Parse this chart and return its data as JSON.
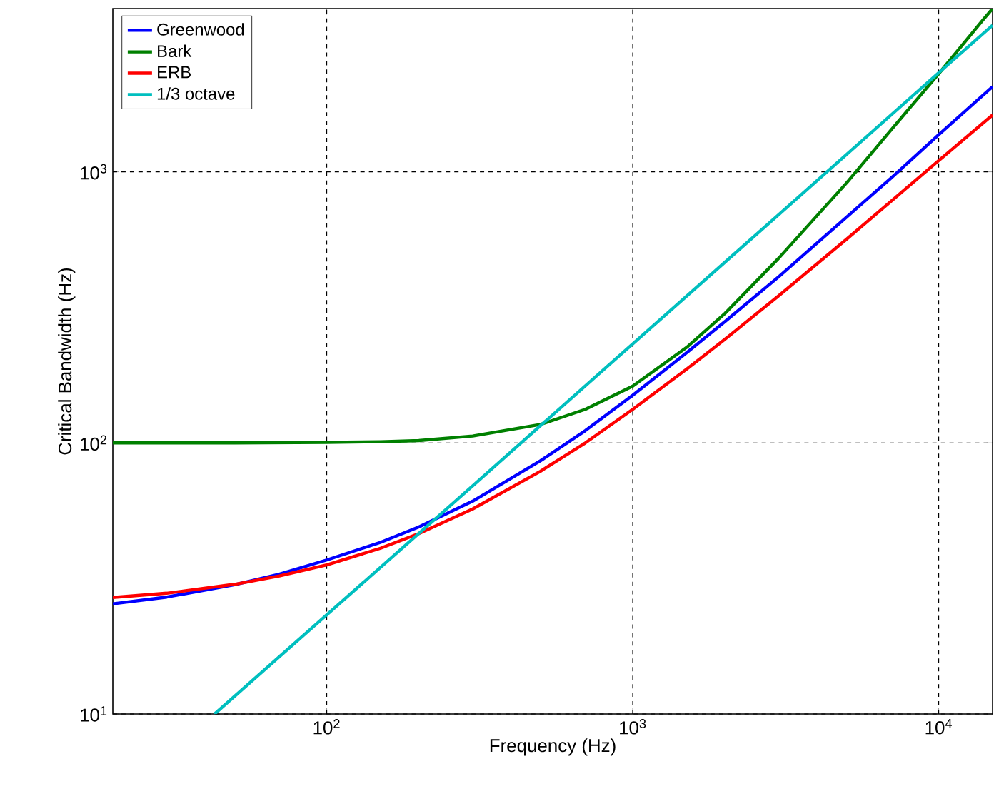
{
  "chart_data": {
    "type": "line",
    "xlabel": "Frequency (Hz)",
    "ylabel": "Critical Bandwidth (Hz)",
    "log": "xy",
    "grid": true,
    "legend": "top left",
    "marker": "none",
    "line_style": "solid",
    "xlim": [
      20,
      15000
    ],
    "ylim": [
      10,
      4000
    ],
    "xticks": [
      {
        "value": 100,
        "label": "10$^{2}$"
      },
      {
        "value": 1000,
        "label": "10$^{3}$"
      },
      {
        "value": 10000,
        "label": "10$^{4}$"
      }
    ],
    "yticks": [
      {
        "value": 10,
        "label": "10$^{1}$"
      },
      {
        "value": 100,
        "label": "10$^{2}$"
      },
      {
        "value": 1000,
        "label": "10$^{3}$"
      }
    ],
    "series": [
      {
        "name": "Greenwood",
        "color": "#0000ff",
        "x": [
          20,
          30,
          50,
          70,
          100,
          150,
          200,
          300,
          500,
          700,
          1000,
          1500,
          2000,
          3000,
          5000,
          7000,
          10000,
          15000
        ],
        "values": [
          25.5,
          27,
          30,
          32.8,
          37,
          43,
          49,
          61,
          86,
          111,
          150,
          215,
          280,
          410,
          680,
          950,
          1370,
          2060
        ]
      },
      {
        "name": "Bark",
        "color": "#008000",
        "x": [
          20,
          50,
          100,
          150,
          200,
          300,
          500,
          700,
          1000,
          1500,
          2000,
          3000,
          5000,
          7000,
          10000,
          14000,
          15000
        ],
        "values": [
          100,
          100,
          100.5,
          101,
          102,
          106,
          117,
          133,
          162,
          225,
          300,
          480,
          910,
          1430,
          2300,
          3650,
          4000
        ]
      },
      {
        "name": "ERB",
        "color": "#ff0000",
        "x": [
          20,
          30,
          50,
          70,
          100,
          150,
          200,
          300,
          500,
          700,
          1000,
          1500,
          2000,
          3000,
          5000,
          7000,
          10000,
          15000
        ],
        "values": [
          26.9,
          27.9,
          30.1,
          32.3,
          35.5,
          40.9,
          46.3,
          57.1,
          78.7,
          100,
          133,
          187,
          241,
          349,
          564,
          780,
          1100,
          1620
        ]
      },
      {
        "name": "1/3 octave",
        "color": "#00bfbf",
        "x": [
          43,
          100,
          300,
          1000,
          3000,
          10000,
          15000
        ],
        "values": [
          10,
          23.2,
          69.5,
          232,
          695,
          2320,
          3470
        ]
      }
    ]
  }
}
